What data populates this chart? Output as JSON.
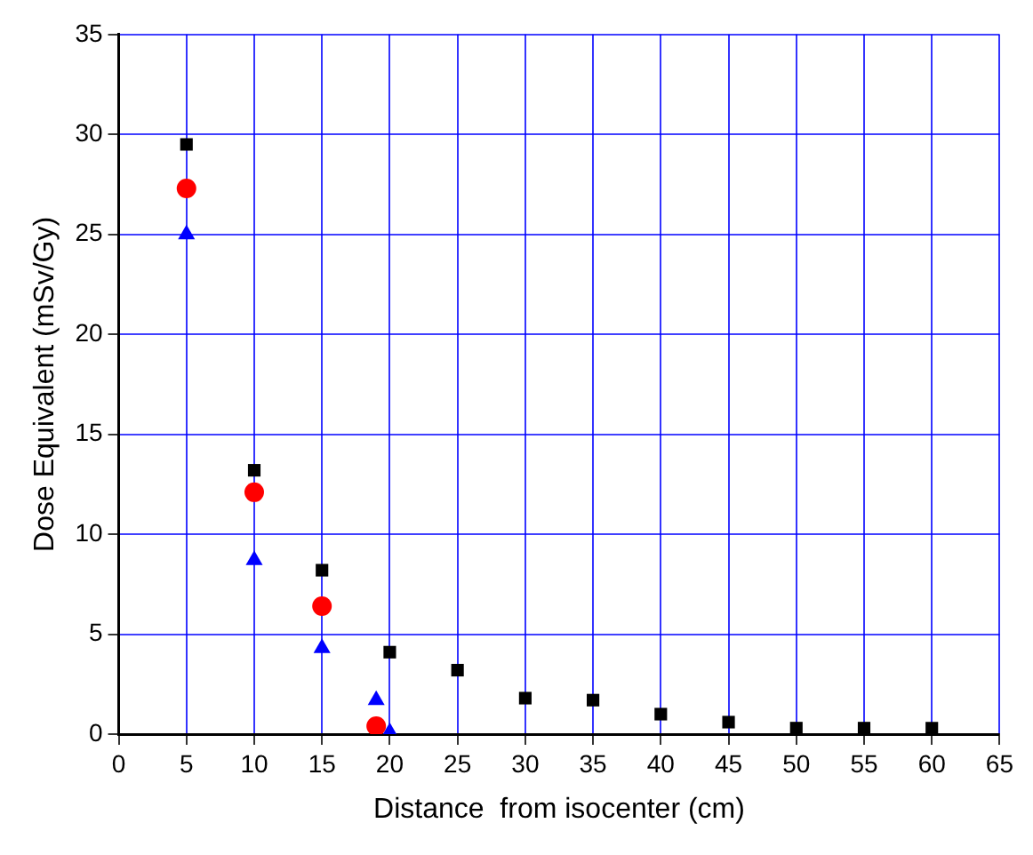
{
  "chart_data": {
    "type": "scatter",
    "xlabel": "Distance  from isocenter (cm)",
    "ylabel": "Dose Equivalent (mSv/Gy)",
    "xlim": [
      0,
      65
    ],
    "xticks": [
      0,
      5,
      10,
      15,
      20,
      25,
      30,
      35,
      40,
      45,
      50,
      55,
      60,
      65
    ],
    "ylim": [
      0,
      35
    ],
    "yticks": [
      0,
      5,
      10,
      15,
      20,
      25,
      30,
      35
    ],
    "grid": true,
    "legend": false,
    "series": [
      {
        "color": "#000000",
        "marker": "square",
        "x": [
          5,
          10,
          15,
          20,
          25,
          30,
          35,
          40,
          45,
          50,
          55,
          60
        ],
        "values": [
          29.5,
          13.2,
          8.2,
          4.1,
          3.2,
          1.8,
          1.7,
          1.0,
          0.6,
          0.3,
          0.3,
          0.3
        ]
      },
      {
        "color": "#ff0000",
        "marker": "circle",
        "x": [
          5,
          10,
          15,
          19
        ],
        "values": [
          27.3,
          12.1,
          6.4,
          0.4
        ]
      },
      {
        "color": "#0000ff",
        "marker": "triangle",
        "x": [
          5,
          10,
          15,
          19,
          20
        ],
        "values": [
          25,
          8.7,
          4.3,
          1.7,
          0.1
        ]
      }
    ]
  }
}
